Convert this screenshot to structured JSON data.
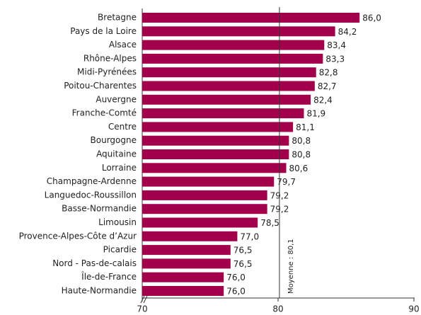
{
  "chart_data": {
    "type": "bar",
    "orientation": "horizontal",
    "categories": [
      "Bretagne",
      "Pays de la Loire",
      "Alsace",
      "Rhône-Alpes",
      "Midi-Pyrénées",
      "Poitou-Charentes",
      "Auvergne",
      "Franche-Comté",
      "Centre",
      "Bourgogne",
      "Aquitaine",
      "Lorraine",
      "Champagne-Ardenne",
      "Languedoc-Roussillon",
      "Basse-Normandie",
      "Limousin",
      "Provence-Alpes-Côte d’Azur",
      "Picardie",
      "Nord - Pas-de-calais",
      "Île-de-France",
      "Haute-Normandie"
    ],
    "values": [
      86.0,
      84.2,
      83.4,
      83.3,
      82.8,
      82.7,
      82.4,
      81.9,
      81.1,
      80.8,
      80.8,
      80.6,
      79.7,
      79.2,
      79.2,
      78.5,
      77.0,
      76.5,
      76.5,
      76.0,
      76.0
    ],
    "value_labels": [
      "86,0",
      "84,2",
      "83,4",
      "83,3",
      "82,8",
      "82,7",
      "82,4",
      "81,9",
      "81,1",
      "80,8",
      "80,8",
      "80,6",
      "79,7",
      "79,2",
      "79,2",
      "78,5",
      "77,0",
      "76,5",
      "76,5",
      "76,0",
      "76,0"
    ],
    "color": "#a3004b",
    "xlim": [
      70,
      90
    ],
    "xticks": [
      70,
      80,
      90
    ],
    "mean": {
      "value": 80.1,
      "label": "Moyenne : 80,1"
    }
  }
}
